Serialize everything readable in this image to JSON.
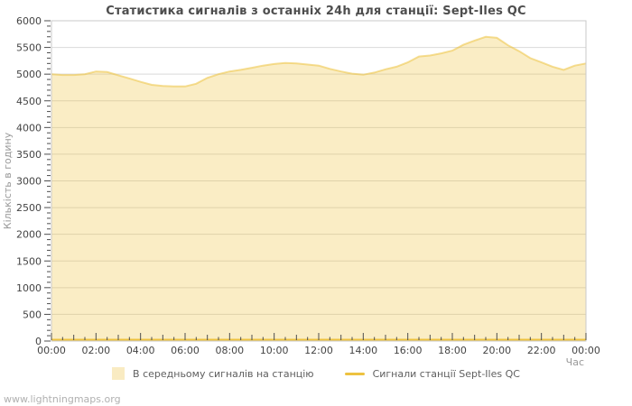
{
  "header": {
    "title": "Статистика сигналів з останніх 24h для станції: Sept-Iles QC"
  },
  "watermark": "www.lightningmaps.org",
  "legend": {
    "items": [
      {
        "label": "В середньому сигналів на станцію",
        "swatch": "area-swatch",
        "color": "#EDC240"
      },
      {
        "label": "Сигнали станції Sept-Iles QC",
        "swatch": "line-swatch",
        "color": "#EDC240"
      }
    ]
  },
  "colors": {
    "series_yellow": "#EDC240",
    "area_fill": "rgba(237,194,64,0.3)",
    "area_edge": "rgba(237,194,64,0.55)",
    "grid": "#d9d9d9",
    "border": "#c9c9c9",
    "tick": "#4d4d4d",
    "tick_label": "#444444",
    "axis_label": "#999999"
  },
  "chart_data": {
    "type": "area",
    "title": "Статистика сигналів з останніх 24h для станції: Sept-Iles QC",
    "xlabel": "Час",
    "ylabel": "Кількість в годину",
    "xlim_hours": [
      0,
      24
    ],
    "ylim": [
      0,
      6000
    ],
    "grid": "horizontal-only, every 500; minor y ticks every 100; x ticks every 30 min",
    "legend_position": "bottom-center",
    "x_tick_step_hours": 2,
    "x_tick_labels": [
      "00:00",
      "02:00",
      "04:00",
      "06:00",
      "08:00",
      "10:00",
      "12:00",
      "14:00",
      "16:00",
      "18:00",
      "20:00",
      "22:00",
      "00:00"
    ],
    "y_tick_step": 500,
    "y_tick_labels": [
      "0",
      "500",
      "1000",
      "1500",
      "2000",
      "2500",
      "3000",
      "3500",
      "4000",
      "4500",
      "5000",
      "5500",
      "6000"
    ],
    "x": [
      0,
      0.5,
      1,
      1.5,
      2,
      2.5,
      3,
      3.5,
      4,
      4.5,
      5,
      5.5,
      6,
      6.5,
      7,
      7.5,
      8,
      8.5,
      9,
      9.5,
      10,
      10.5,
      11,
      11.5,
      12,
      12.5,
      13,
      13.5,
      14,
      14.5,
      15,
      15.5,
      16,
      16.5,
      17,
      17.5,
      18,
      18.5,
      19,
      19.5,
      20,
      20.5,
      21,
      21.5,
      22,
      22.5,
      23,
      23.5,
      24
    ],
    "series": [
      {
        "name": "В середньому сигналів на станцію",
        "style": "area",
        "color": "#EDC240",
        "values": [
          5000,
          4985,
          4985,
          5000,
          5050,
          5040,
          4980,
          4920,
          4855,
          4800,
          4780,
          4770,
          4770,
          4820,
          4930,
          5000,
          5050,
          5080,
          5120,
          5160,
          5190,
          5210,
          5200,
          5180,
          5160,
          5100,
          5050,
          5010,
          4990,
          5030,
          5090,
          5140,
          5220,
          5330,
          5350,
          5390,
          5440,
          5550,
          5630,
          5700,
          5680,
          5540,
          5430,
          5300,
          5220,
          5140,
          5080,
          5160,
          5200
        ]
      },
      {
        "name": "Сигнали станції Sept-Iles QC",
        "style": "line",
        "color": "#EDC240",
        "values": [
          0,
          0,
          0,
          0,
          0,
          0,
          0,
          0,
          0,
          0,
          0,
          0,
          0,
          0,
          0,
          0,
          0,
          0,
          0,
          0,
          0,
          0,
          0,
          0,
          0,
          0,
          0,
          0,
          0,
          0,
          0,
          0,
          0,
          0,
          0,
          0,
          0,
          0,
          0,
          0,
          0,
          0,
          0,
          0,
          0,
          0,
          0,
          0,
          0
        ]
      }
    ]
  }
}
